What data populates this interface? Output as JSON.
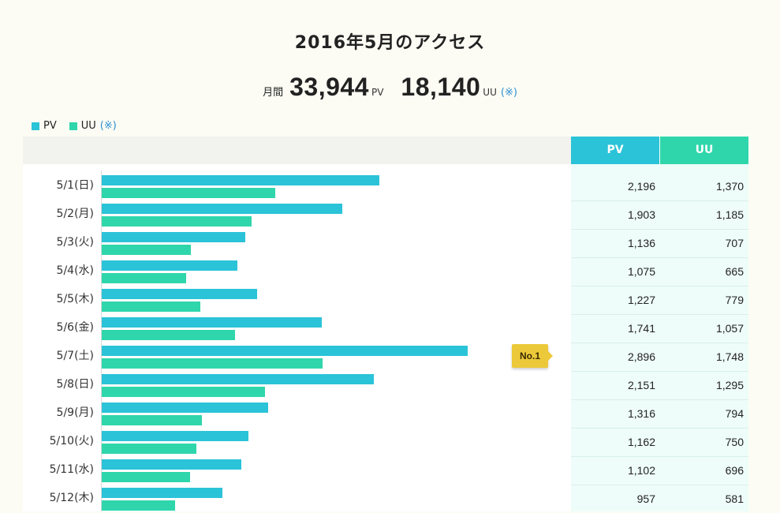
{
  "title": "2016年5月のアクセス",
  "summary": {
    "monthly_label": "月間",
    "pv_total": "33,944",
    "pv_unit": "PV",
    "uu_total": "18,140",
    "uu_unit": "UU",
    "note": "(※)"
  },
  "legend": {
    "pv": "PV",
    "uu": "UU",
    "note": "(※)"
  },
  "table_headers": {
    "pv": "PV",
    "uu": "UU"
  },
  "badge": "No.1",
  "colors": {
    "pv": "#2bc3d8",
    "uu": "#2fd6ab",
    "badge": "#ecc93a",
    "note": "#2a8fd1"
  },
  "chart_data": {
    "type": "bar",
    "orientation": "horizontal",
    "categories": [
      "5/1(日)",
      "5/2(月)",
      "5/3(火)",
      "5/4(水)",
      "5/5(木)",
      "5/6(金)",
      "5/7(土)",
      "5/8(日)",
      "5/9(月)",
      "5/10(火)",
      "5/11(水)",
      "5/12(木)"
    ],
    "series": [
      {
        "name": "PV",
        "values": [
          2196,
          1903,
          1136,
          1075,
          1227,
          1741,
          2896,
          2151,
          1316,
          1162,
          1102,
          957
        ]
      },
      {
        "name": "UU",
        "values": [
          1370,
          1185,
          707,
          665,
          779,
          1057,
          1748,
          1295,
          794,
          750,
          696,
          581
        ]
      }
    ],
    "pv_display": [
      "2,196",
      "1,903",
      "1,136",
      "1,075",
      "1,227",
      "1,741",
      "2,896",
      "2,151",
      "1,316",
      "1,162",
      "1,102",
      "957"
    ],
    "uu_display": [
      "1,370",
      "1,185",
      "707",
      "665",
      "779",
      "1,057",
      "1,748",
      "1,295",
      "794",
      "750",
      "696",
      "581"
    ],
    "xlim": [
      0,
      3500
    ],
    "top_category": "5/7(土)",
    "legend": "top-left",
    "grid": false
  }
}
